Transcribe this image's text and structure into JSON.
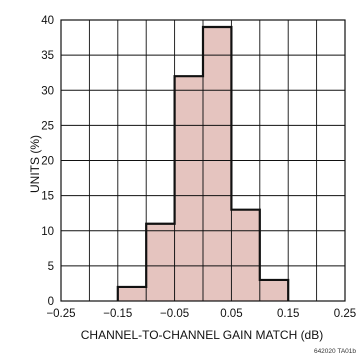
{
  "chart_data": {
    "type": "bar",
    "title": "",
    "xlabel": "CHANNEL-TO-CHANNEL GAIN MATCH (dB)",
    "ylabel": "UNITS (%)",
    "xlim": [
      -0.25,
      0.25
    ],
    "ylim": [
      0,
      40
    ],
    "grid": true,
    "x_ticks": [
      "−0.25",
      "−0.15",
      "−0.05",
      "0.05",
      "0.15",
      "0.25"
    ],
    "x_tick_values": [
      -0.25,
      -0.15,
      -0.05,
      0.05,
      0.15,
      0.25
    ],
    "y_ticks": [
      "0",
      "5",
      "10",
      "15",
      "20",
      "25",
      "30",
      "35",
      "40"
    ],
    "y_tick_values": [
      0,
      5,
      10,
      15,
      20,
      25,
      30,
      35,
      40
    ],
    "bin_width": 0.05,
    "bins": [
      {
        "x0": -0.15,
        "x1": -0.1,
        "value": 2
      },
      {
        "x0": -0.1,
        "x1": -0.05,
        "value": 11
      },
      {
        "x0": -0.05,
        "x1": 0.0,
        "value": 32
      },
      {
        "x0": 0.0,
        "x1": 0.05,
        "value": 39
      },
      {
        "x0": 0.05,
        "x1": 0.1,
        "value": 13
      },
      {
        "x0": 0.1,
        "x1": 0.15,
        "value": 3
      }
    ],
    "colors": {
      "bar_fill": "#e5c4bf",
      "outline": "#111111"
    }
  },
  "figure_id": "642020 TA01b"
}
